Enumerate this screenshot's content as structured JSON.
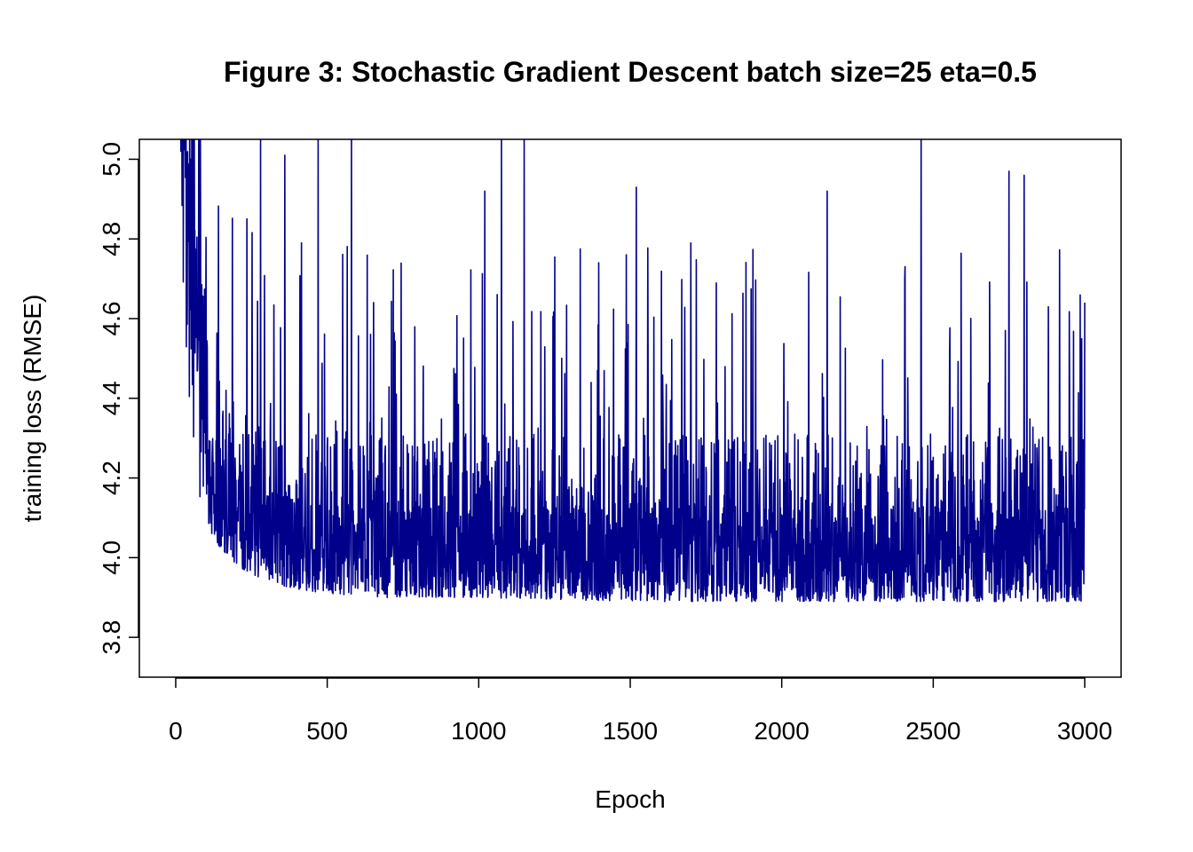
{
  "chart_data": {
    "type": "line",
    "title": "Figure 3: Stochastic Gradient Descent batch size=25 eta=0.5",
    "xlabel": "Epoch",
    "ylabel": "training loss (RMSE)",
    "xlim": [
      -120,
      3120
    ],
    "ylim": [
      3.7,
      5.05
    ],
    "x_ticks": [
      0,
      500,
      1000,
      1500,
      2000,
      2500,
      3000
    ],
    "x_tick_labels": [
      "0",
      "500",
      "1000",
      "1500",
      "2000",
      "2500",
      "3000"
    ],
    "y_ticks": [
      3.8,
      4.0,
      4.2,
      4.4,
      4.6,
      4.8,
      5.0
    ],
    "y_tick_labels": [
      "3.8",
      "4.0",
      "4.2",
      "4.4",
      "4.6",
      "4.8",
      "5.0"
    ],
    "grid": false,
    "series": [
      {
        "color": "#00008B",
        "x_start": 1,
        "x_step": 1,
        "n_points": 3000,
        "x_anchor": [
          1,
          10,
          20,
          30,
          50,
          75,
          100,
          150,
          200,
          300,
          400,
          500,
          700,
          1000,
          1500,
          2000,
          2500,
          3000
        ],
        "y_anchor_floor": [
          4.85,
          4.6,
          4.45,
          4.3,
          4.2,
          4.14,
          4.08,
          4.02,
          3.98,
          3.94,
          3.92,
          3.91,
          3.9,
          3.9,
          3.89,
          3.89,
          3.89,
          3.89
        ],
        "y_anchor_median": [
          6.5,
          5.4,
          4.9,
          4.6,
          4.4,
          4.3,
          4.22,
          4.15,
          4.1,
          4.05,
          4.03,
          4.02,
          4.01,
          4.01,
          4.01,
          4.01,
          4.01,
          4.01
        ],
        "y_min": 3.875,
        "spikes": [
          {
            "x": 280,
            "y": 5.05
          },
          {
            "x": 360,
            "y": 5.01
          },
          {
            "x": 470,
            "y": 5.05
          },
          {
            "x": 580,
            "y": 5.05
          },
          {
            "x": 1020,
            "y": 4.92
          },
          {
            "x": 1075,
            "y": 5.05
          },
          {
            "x": 1150,
            "y": 5.05
          },
          {
            "x": 1520,
            "y": 4.93
          },
          {
            "x": 1700,
            "y": 4.79
          },
          {
            "x": 2150,
            "y": 4.92
          },
          {
            "x": 2460,
            "y": 5.05
          },
          {
            "x": 2750,
            "y": 4.97
          },
          {
            "x": 2800,
            "y": 4.96
          },
          {
            "x": 3000,
            "y": 4.64
          }
        ]
      }
    ]
  }
}
